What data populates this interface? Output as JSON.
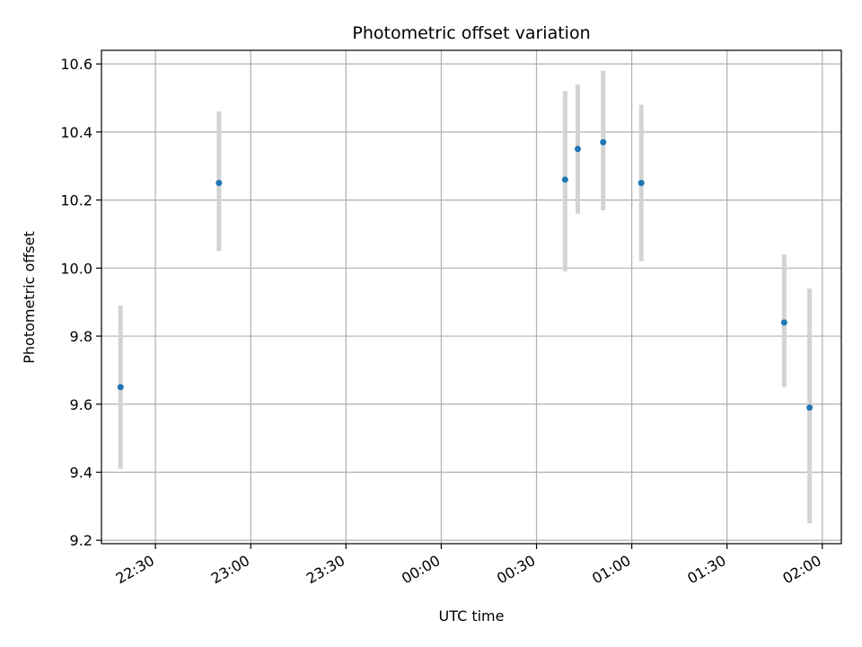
{
  "chart_data": {
    "type": "scatter",
    "title": "Photometric offset variation",
    "xlabel": "UTC time",
    "ylabel": "Photometric offset",
    "x_type": "time",
    "xlim": [
      "22:13",
      "02:06"
    ],
    "ylim": [
      9.19,
      10.64
    ],
    "grid": true,
    "x_ticks": [
      "22:30",
      "23:00",
      "23:30",
      "00:00",
      "00:30",
      "01:00",
      "01:30",
      "02:00"
    ],
    "y_ticks": [
      9.2,
      9.4,
      9.6,
      9.8,
      10.0,
      10.2,
      10.4,
      10.6
    ],
    "y_tick_labels": [
      "9.2",
      "9.4",
      "9.6",
      "9.8",
      "10.0",
      "10.2",
      "10.4",
      "10.6"
    ],
    "points": [
      {
        "x": "22:19",
        "y": 9.65,
        "ylow": 9.41,
        "yhigh": 9.89
      },
      {
        "x": "22:50",
        "y": 10.25,
        "ylow": 10.05,
        "yhigh": 10.46
      },
      {
        "x": "00:39",
        "y": 10.26,
        "ylow": 9.99,
        "yhigh": 10.52
      },
      {
        "x": "00:43",
        "y": 10.35,
        "ylow": 10.16,
        "yhigh": 10.54
      },
      {
        "x": "00:51",
        "y": 10.37,
        "ylow": 10.17,
        "yhigh": 10.58
      },
      {
        "x": "01:03",
        "y": 10.25,
        "ylow": 10.02,
        "yhigh": 10.48
      },
      {
        "x": "01:48",
        "y": 9.84,
        "ylow": 9.65,
        "yhigh": 10.04
      },
      {
        "x": "01:56",
        "y": 9.59,
        "ylow": 9.25,
        "yhigh": 9.94
      }
    ],
    "colors": {
      "point": "#1f77b4",
      "errorbar": "#d3d3d3",
      "grid": "#b0b0b0",
      "axes": "#000000"
    }
  }
}
